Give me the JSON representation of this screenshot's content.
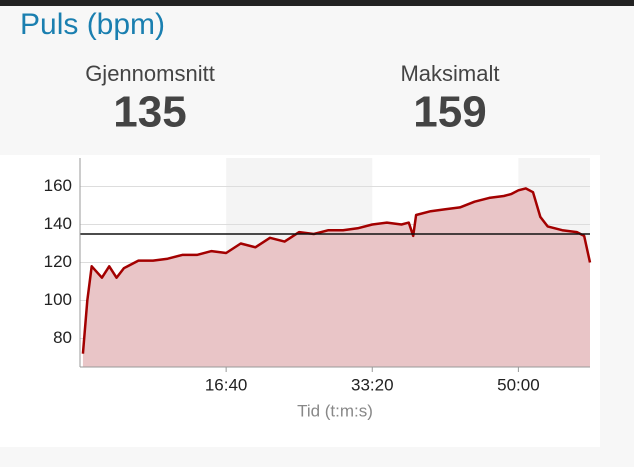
{
  "header": {
    "title": "Puls (bpm)"
  },
  "stats": [
    {
      "label": "Gjennomsnitt",
      "value": 135
    },
    {
      "label": "Maksimalt",
      "value": 159
    }
  ],
  "chart_data": {
    "type": "line",
    "x_label": "Tid (t:m:s)",
    "x": [
      20,
      50,
      80,
      150,
      200,
      250,
      300,
      400,
      500,
      600,
      700,
      800,
      900,
      1000,
      1100,
      1200,
      1300,
      1400,
      1500,
      1600,
      1700,
      1800,
      1900,
      2000,
      2100,
      2200,
      2250,
      2280,
      2300,
      2400,
      2500,
      2600,
      2700,
      2800,
      2900,
      2950,
      3000,
      3050,
      3100,
      3150,
      3200,
      3300,
      3400,
      3450,
      3490
    ],
    "series": [
      {
        "color": "#a30000",
        "fill": "#e9c5c7",
        "values": [
          72,
          100,
          118,
          112,
          118,
          112,
          117,
          121,
          121,
          122,
          124,
          124,
          126,
          125,
          130,
          128,
          133,
          131,
          136,
          135,
          137,
          137,
          138,
          140,
          141,
          140,
          141,
          134,
          145,
          147,
          148,
          149,
          152,
          154,
          155,
          156,
          158,
          159,
          157,
          144,
          139,
          137,
          136,
          134,
          120
        ]
      }
    ],
    "xlim": [
      0,
      3490
    ],
    "ylim": [
      65,
      175
    ],
    "xticks": [
      {
        "value": 1000,
        "label": "16:40"
      },
      {
        "value": 2000,
        "label": "33:20"
      },
      {
        "value": 3000,
        "label": "50:00"
      }
    ],
    "yticks": [
      80,
      100,
      120,
      140,
      160
    ],
    "grid": true
  }
}
